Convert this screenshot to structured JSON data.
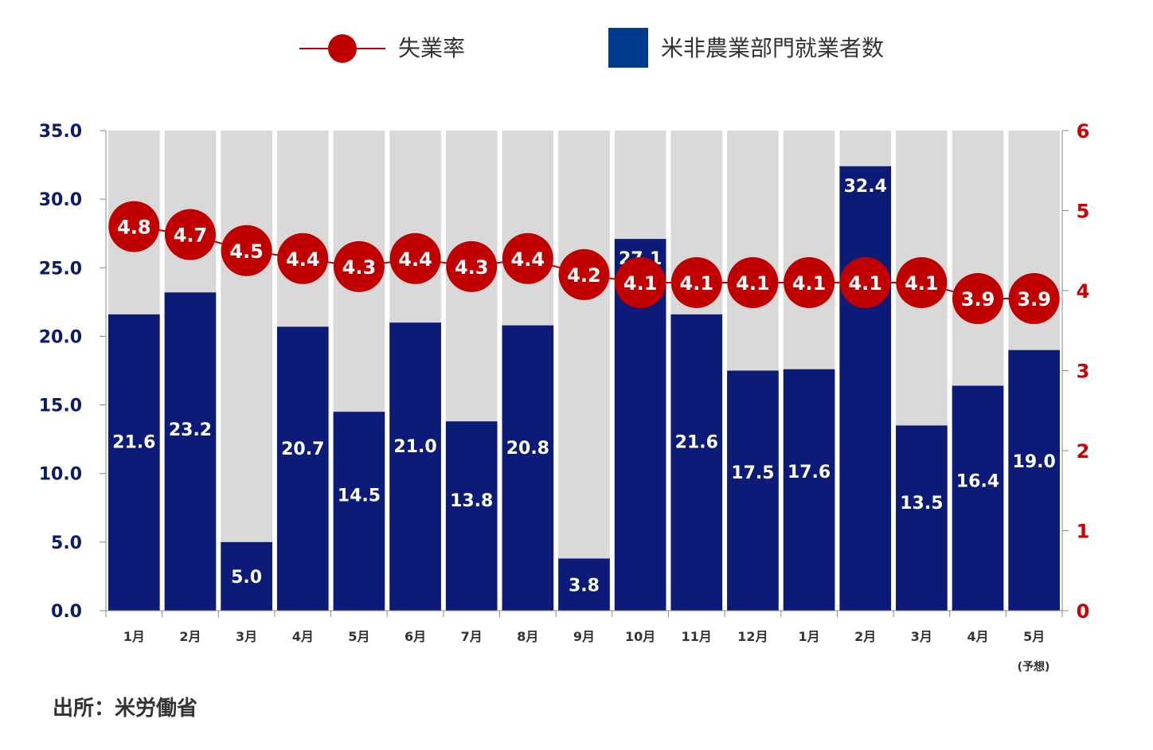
{
  "legend": {
    "rate_label": "失業率",
    "payroll_label": "米非農業部門就業者数"
  },
  "source": "出所：米労働省",
  "x_note": "(予想)",
  "colors": {
    "bar": "#0c1a78",
    "bar_background": "#d9d9d9",
    "rate_marker": "#c00000",
    "left_axis_text": "#0a1a6e",
    "right_axis_text": "#cc0000",
    "legend_payroll_swatch": "#003a8c"
  },
  "chart_data": {
    "type": "bar",
    "categories": [
      "1月",
      "2月",
      "3月",
      "4月",
      "5月",
      "6月",
      "7月",
      "8月",
      "9月",
      "10月",
      "11月",
      "12月",
      "1月",
      "2月",
      "3月",
      "4月",
      "5月"
    ],
    "series": [
      {
        "name": "米非農業部門就業者数",
        "type": "bar",
        "axis": "left",
        "values": [
          21.6,
          23.2,
          5.0,
          20.7,
          14.5,
          21.0,
          13.8,
          20.8,
          3.8,
          27.1,
          21.6,
          17.5,
          17.6,
          32.4,
          13.5,
          16.4,
          19.0
        ],
        "labels": [
          "21.6",
          "23.2",
          "5.0",
          "20.7",
          "14.5",
          "21.0",
          "13.8",
          "20.8",
          "3.8",
          "27.1",
          "21.6",
          "17.5",
          "17.6",
          "32.4",
          "13.5",
          "16.4",
          "19.0"
        ]
      },
      {
        "name": "失業率",
        "type": "line",
        "axis": "right",
        "values": [
          4.8,
          4.7,
          4.5,
          4.4,
          4.3,
          4.4,
          4.3,
          4.4,
          4.2,
          4.1,
          4.1,
          4.1,
          4.1,
          4.1,
          4.1,
          3.9,
          3.9
        ],
        "labels": [
          "4.8",
          "4.7",
          "4.5",
          "4.4",
          "4.3",
          "4.4",
          "4.3",
          "4.4",
          "4.2",
          "4.1",
          "4.1",
          "4.1",
          "4.1",
          "4.1",
          "4.1",
          "3.9",
          "3.9"
        ]
      }
    ],
    "y_left": {
      "lim": [
        0,
        35
      ],
      "ticks": [
        "0.0",
        "5.0",
        "10.0",
        "15.0",
        "20.0",
        "25.0",
        "30.0",
        "35.0"
      ]
    },
    "y_right": {
      "lim": [
        0,
        6
      ],
      "ticks": [
        "0",
        "1",
        "2",
        "3",
        "4",
        "5",
        "6"
      ]
    },
    "legend_position": "top",
    "grid": false
  }
}
